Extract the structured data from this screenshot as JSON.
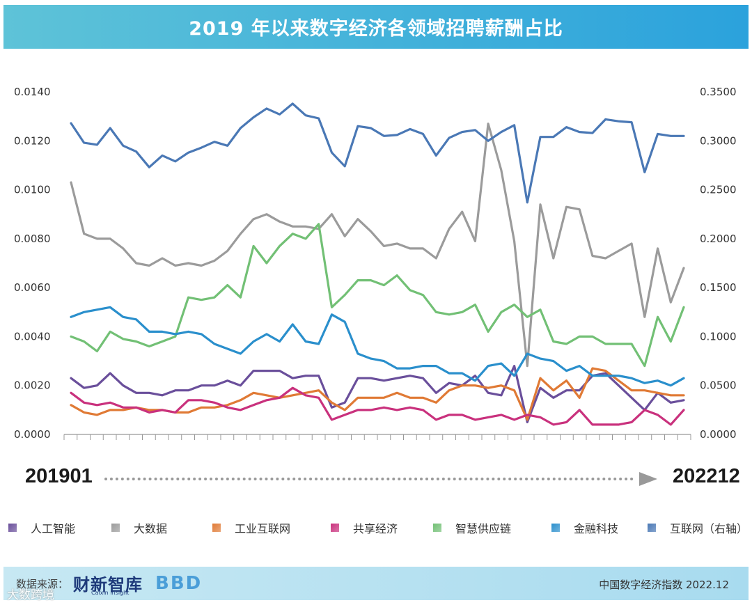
{
  "title": "2019 年以来数字经济各领域招聘薪酬占比",
  "range": {
    "start": "201901",
    "end": "202212"
  },
  "footer": {
    "source_label": "数据来源：",
    "logo_caixin": "财新智库",
    "logo_caixin_sub": "Caixin Insight",
    "logo_bbd": "BBD",
    "right_text": "中国数字经济指数 2022.12"
  },
  "watermark": "大数跨境",
  "chart_data": {
    "type": "line",
    "title": "2019 年以来数字经济各领域招聘薪酬占比",
    "xlabel": "",
    "ylabel": "",
    "ylim": [
      0,
      0.014
    ],
    "y2lim": [
      0,
      0.35
    ],
    "yticks": [
      "0.0000",
      "0.0020",
      "0.0040",
      "0.0060",
      "0.0080",
      "0.0100",
      "0.0120",
      "0.0140"
    ],
    "y2ticks": [
      "0.0000",
      "0.0500",
      "0.1000",
      "0.1500",
      "0.2000",
      "0.2500",
      "0.3000",
      "0.3500"
    ],
    "x_start": "201901",
    "x_end": "202212",
    "n_points": 48,
    "legend_position": "bottom",
    "grid": false,
    "series": [
      {
        "name": "人工智能",
        "color": "#6a4f9b",
        "axis": "left",
        "values": [
          0.0023,
          0.0019,
          0.002,
          0.0025,
          0.002,
          0.0017,
          0.0017,
          0.0016,
          0.0018,
          0.0018,
          0.002,
          0.002,
          0.0022,
          0.002,
          0.0026,
          0.0026,
          0.0026,
          0.0023,
          0.0024,
          0.0024,
          0.0011,
          0.0013,
          0.0023,
          0.0023,
          0.0022,
          0.0023,
          0.0024,
          0.0023,
          0.0017,
          0.0021,
          0.002,
          0.0024,
          0.0017,
          0.0016,
          0.0028,
          0.0005,
          0.0019,
          0.0015,
          0.0018,
          0.0018,
          0.0024,
          0.0025,
          0.002,
          0.0015,
          0.001,
          0.0017,
          0.0013,
          0.0014
        ]
      },
      {
        "name": "大数据",
        "color": "#9b9b9b",
        "axis": "left",
        "values": [
          0.0103,
          0.0082,
          0.008,
          0.008,
          0.0076,
          0.007,
          0.0069,
          0.0072,
          0.0069,
          0.007,
          0.0069,
          0.0071,
          0.0075,
          0.0082,
          0.0088,
          0.009,
          0.0087,
          0.0085,
          0.0085,
          0.0084,
          0.009,
          0.0081,
          0.0088,
          0.0083,
          0.0077,
          0.0078,
          0.0076,
          0.0076,
          0.0072,
          0.0084,
          0.0091,
          0.0079,
          0.0127,
          0.0108,
          0.0079,
          0.0028,
          0.0094,
          0.0072,
          0.0093,
          0.0092,
          0.0073,
          0.0072,
          0.0075,
          0.0078,
          0.0048,
          0.0076,
          0.0054,
          0.0068
        ]
      },
      {
        "name": "工业互联网",
        "color": "#e07a35",
        "axis": "left",
        "values": [
          0.0012,
          0.0009,
          0.0008,
          0.001,
          0.001,
          0.0011,
          0.001,
          0.001,
          0.0009,
          0.0009,
          0.0011,
          0.0011,
          0.0012,
          0.0014,
          0.0017,
          0.0016,
          0.0015,
          0.0016,
          0.0017,
          0.0018,
          0.0013,
          0.001,
          0.0015,
          0.0015,
          0.0015,
          0.0017,
          0.0015,
          0.0015,
          0.0013,
          0.0018,
          0.002,
          0.002,
          0.0019,
          0.002,
          0.0018,
          0.0006,
          0.0023,
          0.0018,
          0.0022,
          0.0015,
          0.0027,
          0.0026,
          0.0022,
          0.0018,
          0.0018,
          0.0017,
          0.0016,
          0.0016
        ]
      },
      {
        "name": "共享经济",
        "color": "#c9317d",
        "axis": "left",
        "values": [
          0.0017,
          0.0013,
          0.0012,
          0.0013,
          0.0011,
          0.0011,
          0.0009,
          0.001,
          0.0009,
          0.0014,
          0.0014,
          0.0013,
          0.0011,
          0.001,
          0.0012,
          0.0014,
          0.0015,
          0.0019,
          0.0016,
          0.0015,
          0.0006,
          0.0008,
          0.001,
          0.001,
          0.0011,
          0.001,
          0.0011,
          0.001,
          0.0006,
          0.0008,
          0.0008,
          0.0006,
          0.0007,
          0.0008,
          0.0006,
          0.0008,
          0.0007,
          0.0004,
          0.0005,
          0.001,
          0.0004,
          0.0004,
          0.0004,
          0.0005,
          0.001,
          0.0008,
          0.0004,
          0.001
        ]
      },
      {
        "name": "智慧供应链",
        "color": "#72c075",
        "axis": "left",
        "values": [
          0.004,
          0.0038,
          0.0034,
          0.0042,
          0.0039,
          0.0038,
          0.0036,
          0.0038,
          0.004,
          0.0056,
          0.0055,
          0.0056,
          0.0061,
          0.0056,
          0.0077,
          0.007,
          0.0077,
          0.0082,
          0.008,
          0.0086,
          0.0052,
          0.0057,
          0.0063,
          0.0063,
          0.0061,
          0.0065,
          0.0059,
          0.0057,
          0.005,
          0.0049,
          0.005,
          0.0053,
          0.0042,
          0.005,
          0.0053,
          0.0048,
          0.0051,
          0.0038,
          0.0037,
          0.004,
          0.004,
          0.0037,
          0.0037,
          0.0037,
          0.0028,
          0.0048,
          0.0038,
          0.0052
        ]
      },
      {
        "name": "金融科技",
        "color": "#2a8fcc",
        "axis": "left",
        "values": [
          0.0048,
          0.005,
          0.0051,
          0.0052,
          0.0048,
          0.0047,
          0.0042,
          0.0042,
          0.0041,
          0.0042,
          0.0041,
          0.0037,
          0.0035,
          0.0033,
          0.0038,
          0.0041,
          0.0038,
          0.0045,
          0.0038,
          0.0037,
          0.0049,
          0.0046,
          0.0033,
          0.0031,
          0.003,
          0.0027,
          0.0027,
          0.0028,
          0.0028,
          0.0025,
          0.0025,
          0.0022,
          0.0028,
          0.0029,
          0.0024,
          0.0033,
          0.0031,
          0.003,
          0.0026,
          0.0028,
          0.0024,
          0.0024,
          0.0024,
          0.0023,
          0.0021,
          0.0022,
          0.002,
          0.0023
        ]
      },
      {
        "name": "互联网（右轴）",
        "color": "#4a78b5",
        "axis": "right",
        "values": [
          0.318,
          0.298,
          0.296,
          0.313,
          0.295,
          0.289,
          0.273,
          0.285,
          0.279,
          0.288,
          0.293,
          0.299,
          0.295,
          0.313,
          0.324,
          0.333,
          0.327,
          0.338,
          0.326,
          0.323,
          0.288,
          0.274,
          0.315,
          0.313,
          0.305,
          0.306,
          0.312,
          0.307,
          0.285,
          0.303,
          0.309,
          0.311,
          0.3,
          0.309,
          0.316,
          0.237,
          0.304,
          0.304,
          0.314,
          0.309,
          0.308,
          0.322,
          0.32,
          0.319,
          0.268,
          0.307,
          0.305,
          0.305
        ]
      }
    ]
  }
}
